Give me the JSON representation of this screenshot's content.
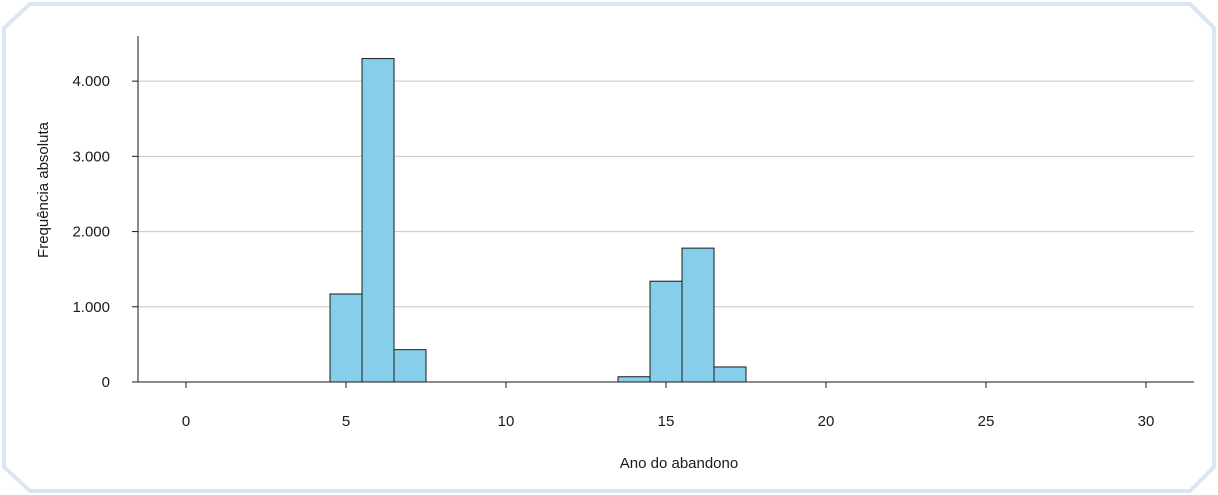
{
  "chart_data": {
    "type": "bar",
    "subtype": "histogram",
    "title": "",
    "xlabel": "Ano do abandono",
    "ylabel": "Frequência absoluta",
    "xlim": [
      -1.5,
      31.5
    ],
    "ylim": [
      0,
      4600
    ],
    "x_ticks": [
      0,
      5,
      10,
      15,
      20,
      25,
      30
    ],
    "x_tick_labels": [
      "0",
      "5",
      "10",
      "15",
      "20",
      "25",
      "30"
    ],
    "y_ticks": [
      0,
      1000,
      2000,
      3000,
      4000
    ],
    "y_tick_labels": [
      "0",
      "1.000",
      "2.000",
      "3.000",
      "4.000"
    ],
    "bin_width": 1,
    "bins": [
      {
        "center": 5,
        "value": 1170
      },
      {
        "center": 6,
        "value": 4300
      },
      {
        "center": 7,
        "value": 430
      },
      {
        "center": 14,
        "value": 70
      },
      {
        "center": 15,
        "value": 1340
      },
      {
        "center": 16,
        "value": 1780
      },
      {
        "center": 17,
        "value": 200
      }
    ],
    "grid": {
      "horizontal": true,
      "vertical": false
    },
    "legend": "none",
    "colors": {
      "bar_fill": "#87ceeb",
      "bar_stroke": "#1a1a1a",
      "grid": "#c8c8c8",
      "axis": "#1a1a1a",
      "frame_border": "#dce6f0"
    }
  }
}
